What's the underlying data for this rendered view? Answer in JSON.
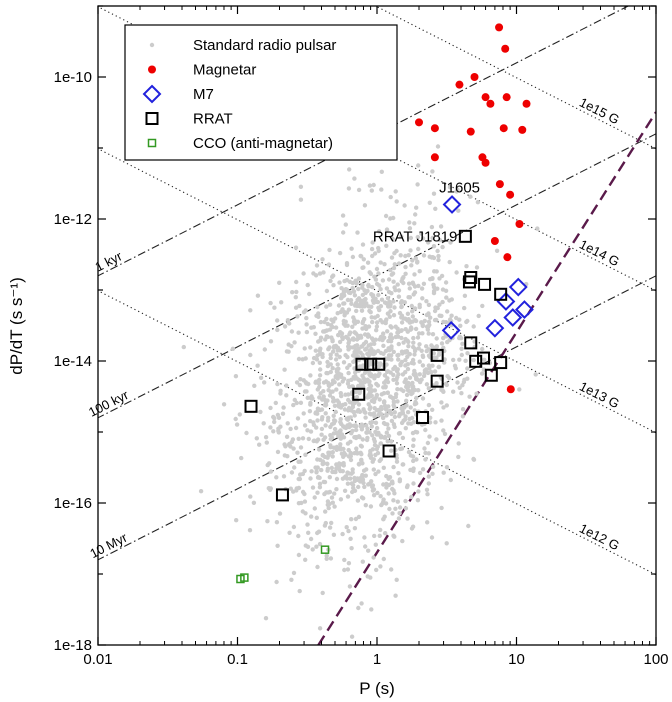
{
  "chart_data": {
    "type": "scatter",
    "xlabel": "P (s)",
    "ylabel": "dP/dT (s s⁻¹)",
    "x_log": true,
    "y_log": true,
    "xlim": [
      0.01,
      100
    ],
    "ylim": [
      1e-18,
      1e-09
    ],
    "x_ticks": [
      {
        "value": 0.01,
        "label": "0.01"
      },
      {
        "value": 0.1,
        "label": "0.1"
      },
      {
        "value": 1,
        "label": "1"
      },
      {
        "value": 10,
        "label": "10"
      },
      {
        "value": 100,
        "label": "100"
      }
    ],
    "y_ticks": [
      {
        "value": 1e-18,
        "label": "1e-18"
      },
      {
        "value": 1e-16,
        "label": "1e-16"
      },
      {
        "value": 1e-14,
        "label": "1e-14"
      },
      {
        "value": 1e-12,
        "label": "1e-12"
      },
      {
        "value": 1e-10,
        "label": "1e-10"
      }
    ],
    "grid": false,
    "legend_position": "top-left",
    "series": [
      {
        "name": "Standard radio pulsar",
        "marker": "dot",
        "color": "#cccccc",
        "count_note": "dense cloud of ~1700 points",
        "center": [
          0.85,
          5e-15
        ]
      },
      {
        "name": "Magnetar",
        "marker": "filled-circle",
        "color": "#ee0000",
        "points": [
          [
            7.5,
            5e-10
          ],
          [
            8.3,
            2.5e-10
          ],
          [
            5,
            1e-10
          ],
          [
            3.9,
            7.8e-11
          ],
          [
            6,
            5.2e-11
          ],
          [
            8.5,
            5.2e-11
          ],
          [
            11.8,
            4.2e-11
          ],
          [
            6.5,
            4.2e-11
          ],
          [
            2,
            2.3e-11
          ],
          [
            2.6,
            1.9e-11
          ],
          [
            8.1,
            1.9e-11
          ],
          [
            4.7,
            1.7e-11
          ],
          [
            11,
            1.8e-11
          ],
          [
            2.6,
            7.4e-12
          ],
          [
            5.7,
            7.4e-12
          ],
          [
            6,
            6.2e-12
          ],
          [
            7.6,
            3.1e-12
          ],
          [
            9,
            2.2e-12
          ],
          [
            10.5,
            8.5e-13
          ],
          [
            7,
            4.9e-13
          ],
          [
            8.6,
            2.9e-13
          ],
          [
            9.1,
            4e-15
          ]
        ]
      },
      {
        "name": "M7",
        "marker": "open-diamond",
        "color": "#2222dd",
        "points": [
          [
            3.45,
            1.6e-12
          ],
          [
            10.3,
            1.1e-13
          ],
          [
            8.4,
            6.9e-14
          ],
          [
            11.4,
            5.3e-14
          ],
          [
            9.4,
            4.1e-14
          ],
          [
            7,
            2.9e-14
          ],
          [
            3.4,
            2.7e-14
          ]
        ]
      },
      {
        "name": "RRAT",
        "marker": "open-square",
        "color": "#000000",
        "points": [
          [
            4.3,
            5.7e-13
          ],
          [
            4.7,
            1.5e-13
          ],
          [
            4.6,
            1.3e-13
          ],
          [
            5.9,
            1.2e-13
          ],
          [
            7.7,
            8.7e-14
          ],
          [
            4.7,
            1.8e-14
          ],
          [
            2.7,
            1.2e-14
          ],
          [
            5.8,
            1.1e-14
          ],
          [
            5.1,
            9.9e-15
          ],
          [
            7.7,
            9.5e-15
          ],
          [
            6.6,
            6.3e-15
          ],
          [
            0.78,
            9e-15
          ],
          [
            0.9,
            9e-15
          ],
          [
            1.03,
            9e-15
          ],
          [
            2.7,
            5.2e-15
          ],
          [
            0.74,
            3.4e-15
          ],
          [
            2.12,
            1.6e-15
          ],
          [
            0.125,
            2.3e-15
          ],
          [
            1.22,
            5.4e-16
          ],
          [
            0.21,
            1.3e-16
          ]
        ]
      },
      {
        "name": "CCO (anti-magnetar)",
        "marker": "small-open-square",
        "color": "#339922",
        "points": [
          [
            0.105,
            8.5e-18
          ],
          [
            0.112,
            8.9e-18
          ],
          [
            0.424,
            2.2e-17
          ]
        ]
      }
    ],
    "reference_lines": [
      {
        "label": "1 kyr",
        "kind": "age",
        "style": "dash-dot",
        "age_years": 1000
      },
      {
        "label": "100 kyr",
        "kind": "age",
        "style": "dash-dot",
        "age_years": 100000
      },
      {
        "label": "10 Myr",
        "kind": "age",
        "style": "dash-dot",
        "age_years": 10000000
      },
      {
        "label": "1e15 G",
        "kind": "field",
        "style": "dotted",
        "field_gauss": 1000000000000000.0
      },
      {
        "label": "1e14 G",
        "kind": "field",
        "style": "dotted",
        "field_gauss": 100000000000000.0
      },
      {
        "label": "1e13 G",
        "kind": "field",
        "style": "dotted",
        "field_gauss": 10000000000000.0
      },
      {
        "label": "1e12 G",
        "kind": "field",
        "style": "dotted",
        "field_gauss": 1000000000000.0
      },
      {
        "label": "",
        "kind": "death-line",
        "style": "dashed",
        "color": "#5a1a4a",
        "points": [
          [
            0.38,
            1e-18
          ],
          [
            100,
            3.2e-11
          ]
        ]
      }
    ],
    "annotations": [
      {
        "text": "J1605",
        "anchor": [
          3.45,
          1.6e-12
        ]
      },
      {
        "text": "RRAT J1819",
        "anchor": [
          4.3,
          5.7e-13
        ]
      }
    ]
  }
}
